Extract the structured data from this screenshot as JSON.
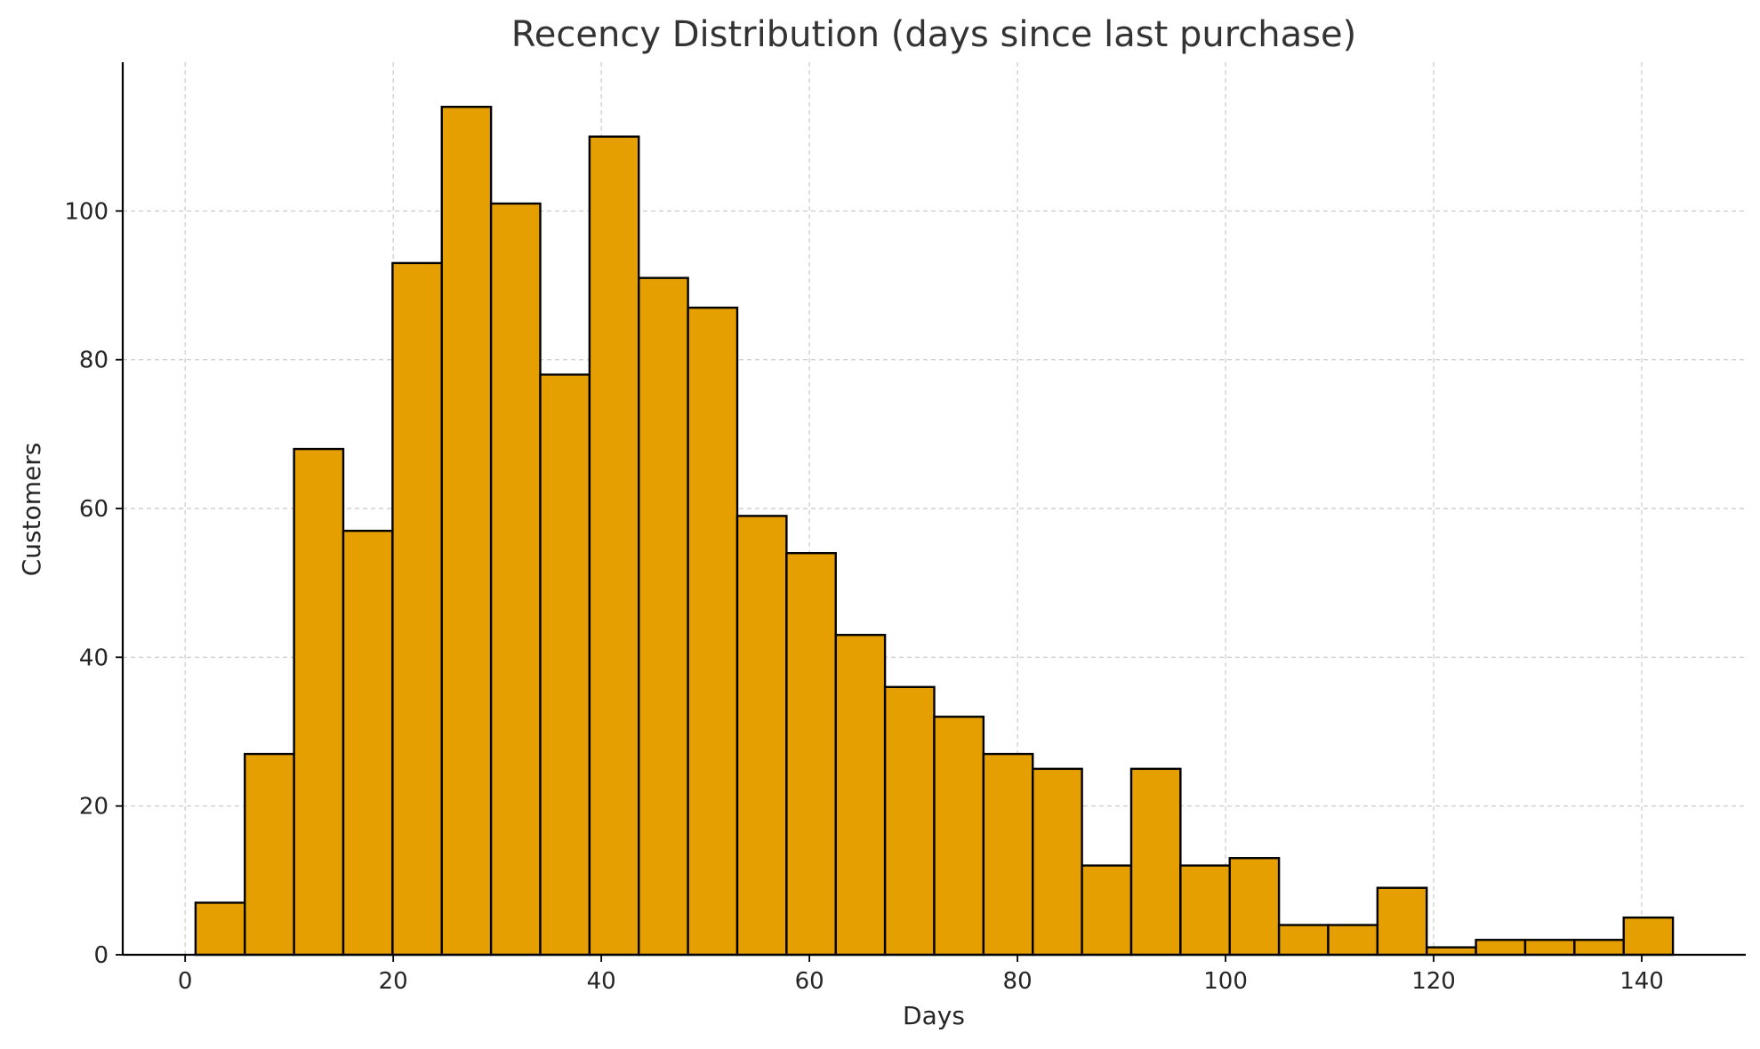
{
  "chart_data": {
    "type": "bar",
    "title": "Recency Distribution (days since last purchase)",
    "xlabel": "Days",
    "ylabel": "Customers",
    "xlim": [
      -6,
      150
    ],
    "ylim": [
      0,
      120
    ],
    "x_ticks": [
      0,
      20,
      40,
      60,
      80,
      100,
      120,
      140
    ],
    "y_ticks": [
      0,
      20,
      40,
      60,
      80,
      100
    ],
    "grid": true,
    "bar_color": "#E69F00",
    "edge_color": "#000000",
    "bins": {
      "start": 1,
      "width": 4.7333,
      "counts": [
        7,
        27,
        68,
        57,
        93,
        114,
        101,
        78,
        110,
        91,
        87,
        59,
        54,
        43,
        36,
        32,
        27,
        25,
        12,
        25,
        12,
        13,
        4,
        4,
        9,
        1,
        2,
        2,
        2,
        5
      ]
    }
  }
}
